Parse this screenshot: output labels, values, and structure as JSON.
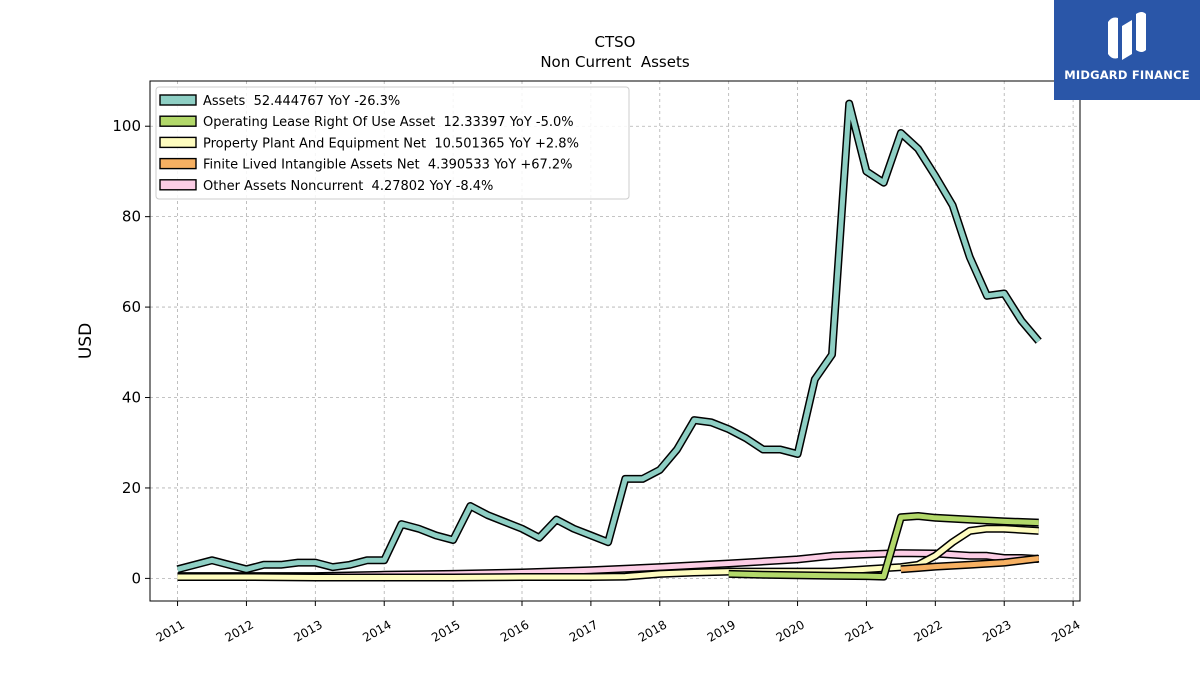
{
  "brand": {
    "name": "MIDGARD FINANCE",
    "color": "#2a56a8"
  },
  "chart_data": {
    "type": "area",
    "title": "CTSO",
    "subtitle": "Non Current  Assets",
    "ylabel": "USD",
    "xlabel": "",
    "xlim": [
      2010.6,
      2024.1
    ],
    "ylim": [
      -5,
      110
    ],
    "x_ticks": [
      "2011",
      "2012",
      "2013",
      "2014",
      "2015",
      "2016",
      "2017",
      "2018",
      "2019",
      "2020",
      "2021",
      "2022",
      "2023",
      "2024"
    ],
    "y_ticks": [
      0,
      20,
      40,
      60,
      80,
      100
    ],
    "grid": true,
    "legend_position": "top-left",
    "series": [
      {
        "name": "Assets",
        "legend": "Assets  52.444767 YoY -26.3%",
        "color": "#8ecfc4",
        "x": [
          2011.0,
          2011.5,
          2012.0,
          2012.25,
          2012.5,
          2012.75,
          2013.0,
          2013.25,
          2013.5,
          2013.75,
          2014.0,
          2014.25,
          2014.5,
          2014.75,
          2015.0,
          2015.25,
          2015.5,
          2015.75,
          2016.0,
          2016.25,
          2016.5,
          2016.75,
          2017.0,
          2017.25,
          2017.5,
          2017.75,
          2018.0,
          2018.25,
          2018.5,
          2018.75,
          2019.0,
          2019.25,
          2019.5,
          2019.75,
          2020.0,
          2020.25,
          2020.5,
          2020.75,
          2021.0,
          2021.25,
          2021.5,
          2021.75,
          2022.0,
          2022.25,
          2022.5,
          2022.75,
          2023.0,
          2023.25,
          2023.5
        ],
        "values": [
          2.0,
          4.0,
          2.0,
          3.0,
          3.0,
          3.5,
          3.5,
          2.5,
          3.0,
          4.0,
          4.0,
          12.0,
          11.0,
          9.5,
          8.5,
          16.0,
          14.0,
          12.5,
          11.0,
          9.0,
          13.0,
          11.0,
          9.5,
          8.0,
          22.0,
          22.0,
          24.0,
          28.5,
          35.0,
          34.5,
          33.0,
          31.0,
          28.5,
          28.5,
          27.5,
          44.0,
          49.5,
          105.0,
          90.0,
          87.5,
          98.5,
          95.0,
          89.0,
          82.5,
          71.0,
          62.5,
          63.0,
          57.0,
          52.444767
        ]
      },
      {
        "name": "Operating Lease Right Of Use Asset",
        "legend": "Operating Lease Right Of Use Asset  12.33397 YoY -5.0%",
        "color": "#b2d86a",
        "x": [
          2019.0,
          2019.5,
          2020.0,
          2020.5,
          2021.0,
          2021.25,
          2021.5,
          2021.75,
          2022.0,
          2022.5,
          2023.0,
          2023.5
        ],
        "values": [
          1.0,
          0.8,
          0.7,
          0.6,
          0.5,
          0.4,
          13.5,
          13.8,
          13.4,
          13.0,
          12.6,
          12.33397
        ]
      },
      {
        "name": "Property Plant And Equipment Net",
        "legend": "Property Plant And Equipment Net  10.501365 YoY +2.8%",
        "color": "#fefcbf",
        "x": [
          2011.0,
          2012.0,
          2013.0,
          2014.0,
          2015.0,
          2016.0,
          2017.0,
          2017.5,
          2018.0,
          2018.5,
          2019.0,
          2019.5,
          2020.0,
          2020.5,
          2021.0,
          2021.5,
          2021.75,
          2022.0,
          2022.25,
          2022.5,
          2022.75,
          2023.0,
          2023.5
        ],
        "values": [
          0.3,
          0.3,
          0.2,
          0.2,
          0.2,
          0.3,
          0.3,
          0.4,
          1.0,
          1.3,
          1.5,
          1.5,
          1.5,
          1.5,
          2.0,
          2.5,
          3.0,
          5.0,
          8.0,
          10.5,
          11.0,
          11.0,
          10.501365
        ]
      },
      {
        "name": "Finite Lived Intangible Assets Net",
        "legend": "Finite Lived Intangible Assets Net  4.390533 YoY +67.2%",
        "color": "#f6b062",
        "x": [
          2021.5,
          2021.75,
          2022.0,
          2022.5,
          2023.0,
          2023.5
        ],
        "values": [
          2.0,
          2.3,
          2.6,
          3.0,
          3.5,
          4.390533
        ]
      },
      {
        "name": "Other Assets Noncurrent",
        "legend": "Other Assets Noncurrent  4.27802 YoY -8.4%",
        "color": "#fccde5",
        "x": [
          2011.0,
          2012.0,
          2013.0,
          2014.0,
          2015.0,
          2016.0,
          2017.0,
          2018.0,
          2019.0,
          2020.0,
          2020.5,
          2021.0,
          2021.5,
          2022.0,
          2022.5,
          2022.75,
          2023.0,
          2023.25,
          2023.5
        ],
        "values": [
          0.5,
          0.5,
          0.5,
          0.8,
          1.0,
          1.3,
          1.8,
          2.5,
          3.3,
          4.2,
          5.0,
          5.3,
          5.6,
          5.5,
          5.0,
          5.0,
          4.5,
          4.5,
          4.27802
        ]
      }
    ]
  }
}
